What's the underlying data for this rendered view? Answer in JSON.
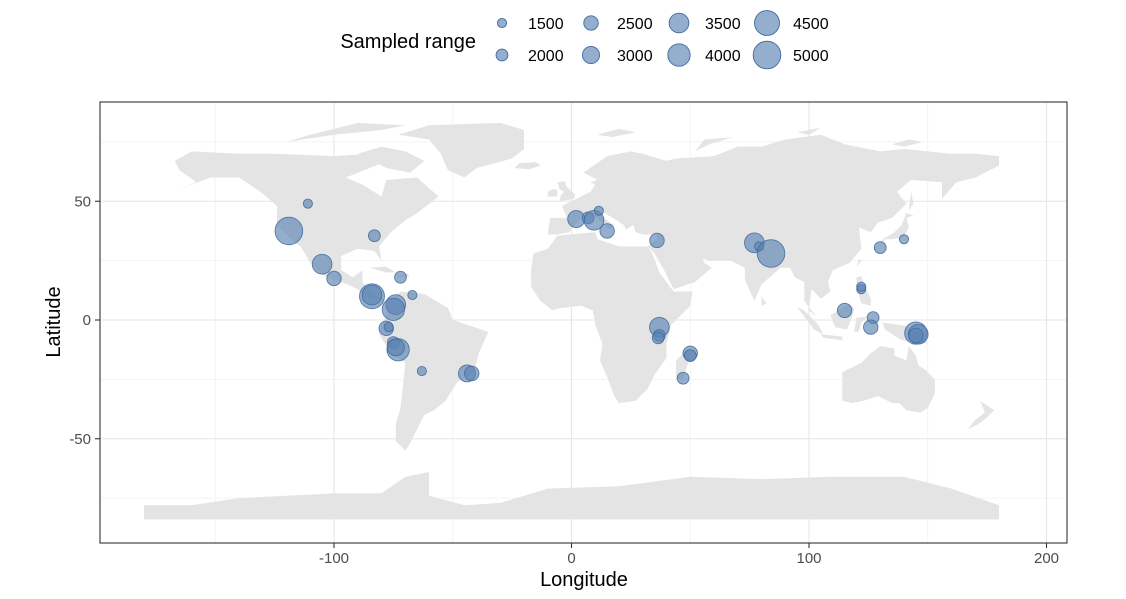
{
  "chart_data": {
    "type": "scatter",
    "title": "",
    "xlabel": "Longitude",
    "ylabel": "Latitude",
    "xlim": [
      -198,
      207
    ],
    "ylim": [
      -94,
      92
    ],
    "x_ticks": [
      -100,
      0,
      100,
      200
    ],
    "x_tick_labels": [
      "-100",
      "0",
      "100",
      "200"
    ],
    "y_ticks": [
      -50,
      0,
      50
    ],
    "y_tick_labels": [
      "-50",
      "0",
      "50"
    ],
    "grid": true,
    "basemap": "world-land-gray",
    "marker_color": "#5b82b2",
    "legend": {
      "title": "Sampled range",
      "position": "top",
      "sizes": [
        1500,
        2000,
        2500,
        3000,
        3500,
        4000,
        4500,
        5000
      ],
      "labels": [
        "1500",
        "2000",
        "2500",
        "3000",
        "3500",
        "4000",
        "4500",
        "5000"
      ]
    },
    "points": [
      {
        "lon": -111,
        "lat": 49,
        "size": 1500
      },
      {
        "lon": -119,
        "lat": 37.5,
        "size": 5000
      },
      {
        "lon": -83,
        "lat": 35.5,
        "size": 2000
      },
      {
        "lon": -105,
        "lat": 23.5,
        "size": 3500
      },
      {
        "lon": -100,
        "lat": 17.5,
        "size": 2500
      },
      {
        "lon": -72,
        "lat": 18,
        "size": 2000
      },
      {
        "lon": -67,
        "lat": 10.5,
        "size": 1500
      },
      {
        "lon": -84,
        "lat": 10,
        "size": 4500
      },
      {
        "lon": -84,
        "lat": 10.5,
        "size": 3500
      },
      {
        "lon": -74,
        "lat": 6.5,
        "size": 3500
      },
      {
        "lon": -75,
        "lat": 4.5,
        "size": 4000
      },
      {
        "lon": -78,
        "lat": -3.5,
        "size": 2500
      },
      {
        "lon": -77,
        "lat": -3,
        "size": 1500
      },
      {
        "lon": -75,
        "lat": -9.5,
        "size": 2000
      },
      {
        "lon": -73,
        "lat": -12.5,
        "size": 4000
      },
      {
        "lon": -74,
        "lat": -11.5,
        "size": 3000
      },
      {
        "lon": -63,
        "lat": -21.5,
        "size": 1500
      },
      {
        "lon": -44,
        "lat": -22.5,
        "size": 3000
      },
      {
        "lon": -42,
        "lat": -22.5,
        "size": 2500
      },
      {
        "lon": 2,
        "lat": 42.5,
        "size": 3000
      },
      {
        "lon": 7,
        "lat": 43,
        "size": 2000
      },
      {
        "lon": 9.5,
        "lat": 42,
        "size": 3500
      },
      {
        "lon": 11.5,
        "lat": 46,
        "size": 1500
      },
      {
        "lon": 15,
        "lat": 37.5,
        "size": 2500
      },
      {
        "lon": 36,
        "lat": 33.5,
        "size": 2500
      },
      {
        "lon": 37,
        "lat": -3,
        "size": 3500
      },
      {
        "lon": 37,
        "lat": -6.5,
        "size": 2000
      },
      {
        "lon": 36.5,
        "lat": -7.5,
        "size": 2000
      },
      {
        "lon": 50,
        "lat": -14,
        "size": 2500
      },
      {
        "lon": 50,
        "lat": -15,
        "size": 2000
      },
      {
        "lon": 47,
        "lat": -24.5,
        "size": 2000
      },
      {
        "lon": 77,
        "lat": 32.5,
        "size": 3500
      },
      {
        "lon": 79,
        "lat": 31,
        "size": 1500
      },
      {
        "lon": 84,
        "lat": 28,
        "size": 5000
      },
      {
        "lon": 115,
        "lat": 4,
        "size": 2500
      },
      {
        "lon": 122,
        "lat": 13,
        "size": 1500
      },
      {
        "lon": 122,
        "lat": 14,
        "size": 1500
      },
      {
        "lon": 127,
        "lat": 1,
        "size": 2000
      },
      {
        "lon": 126,
        "lat": -3,
        "size": 2500
      },
      {
        "lon": 130,
        "lat": 30.5,
        "size": 2000
      },
      {
        "lon": 140,
        "lat": 34,
        "size": 1500
      },
      {
        "lon": 145,
        "lat": -5.5,
        "size": 4000
      },
      {
        "lon": 146,
        "lat": -6,
        "size": 3500
      },
      {
        "lon": 145,
        "lat": -6.5,
        "size": 2500
      }
    ]
  }
}
